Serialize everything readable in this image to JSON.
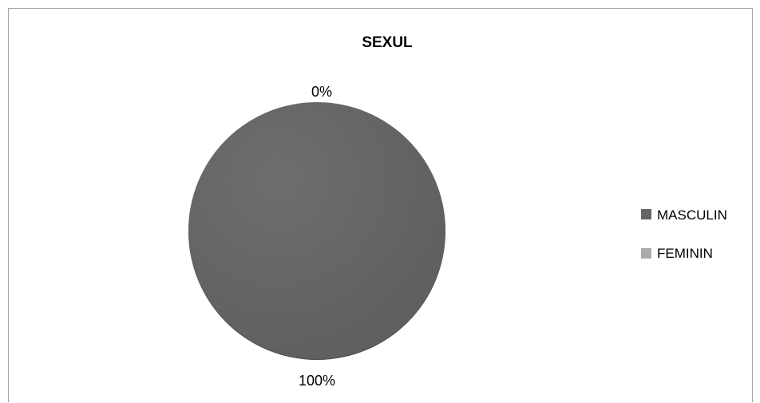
{
  "chart_data": {
    "type": "pie",
    "title": "SEXUL",
    "categories": [
      "MASCULIN",
      "FEMININ"
    ],
    "values": [
      100,
      0
    ],
    "data_labels": [
      "100%",
      "0%"
    ],
    "colors": [
      "#646464",
      "#ababab"
    ],
    "legend": "right"
  }
}
